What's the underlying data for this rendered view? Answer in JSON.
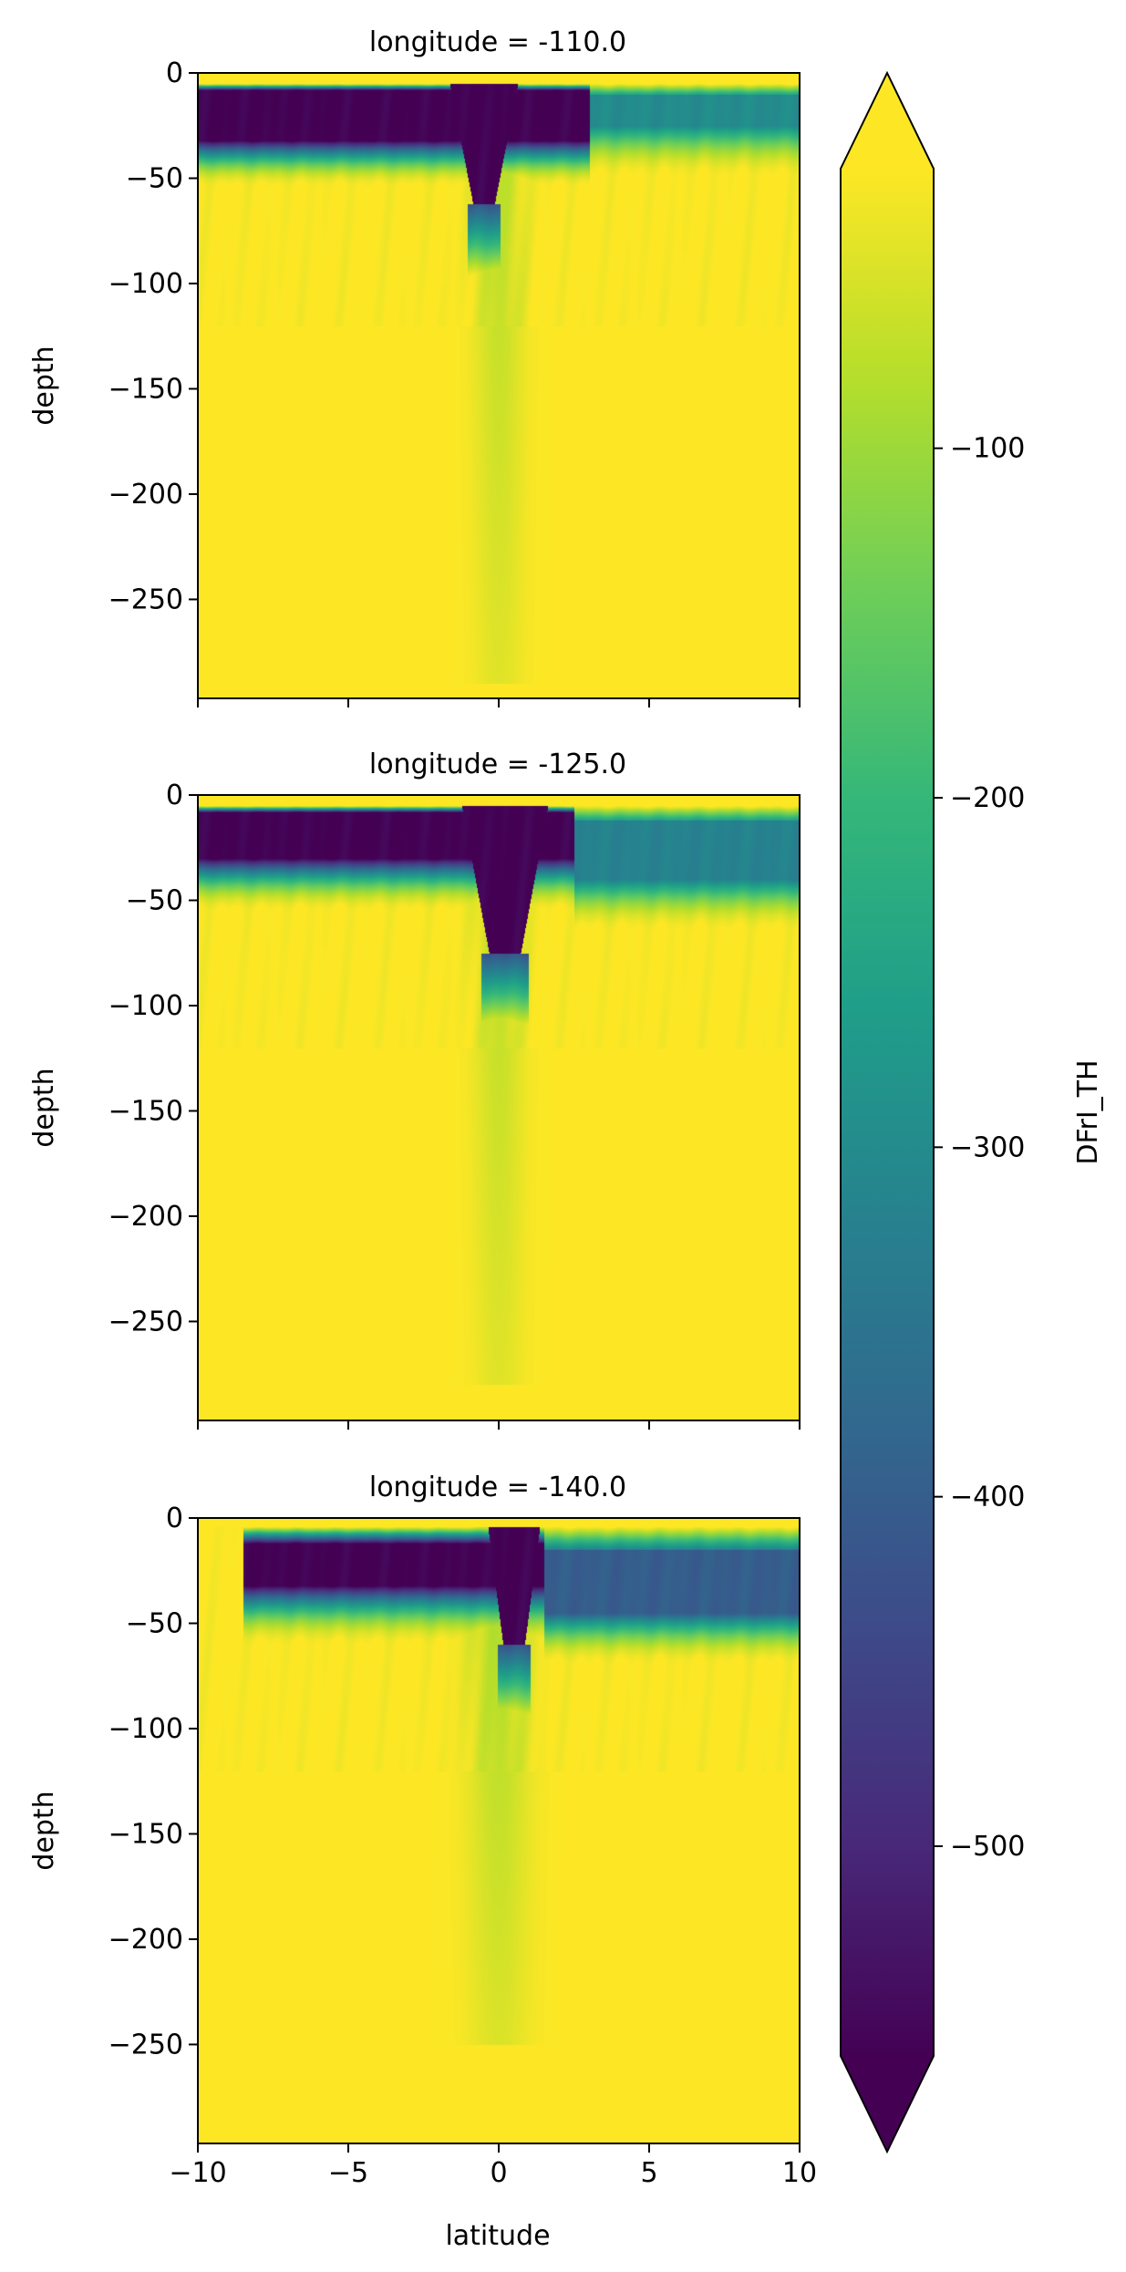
{
  "colors": {
    "viridis": [
      "#440154",
      "#482878",
      "#3e4989",
      "#31688e",
      "#26828e",
      "#1f9e89",
      "#35b779",
      "#6ece58",
      "#b5de2b",
      "#fde725"
    ]
  },
  "chart_data": {
    "type": "heatmap",
    "colorbar": {
      "label": "DFrI_TH",
      "ticks": [
        -100,
        -200,
        -300,
        -400,
        -500
      ],
      "tick_labels": [
        "−100",
        "−200",
        "−300",
        "−400",
        "−500"
      ],
      "range": [
        -560,
        -20
      ],
      "extend": "both",
      "colormap": "viridis"
    },
    "xlabel": "latitude",
    "ylabel": "depth",
    "xlim": [
      -10,
      10
    ],
    "ylim": [
      -297,
      0
    ],
    "xticks": [
      -10,
      -5,
      0,
      5,
      10
    ],
    "xtick_labels": [
      "−10",
      "−5",
      "0",
      "5",
      "10"
    ],
    "yticks": [
      0,
      -50,
      -100,
      -150,
      -200,
      -250
    ],
    "ytick_labels": [
      "0",
      "−50",
      "−100",
      "−150",
      "−200",
      "−250"
    ],
    "panels": [
      {
        "title": "longitude = -110.0",
        "surface_depth": 5,
        "dark_band": {
          "lat_range": [
            -10,
            3
          ],
          "depth_top": 8,
          "depth_bottom": 32,
          "falloff": 14
        },
        "plume": {
          "center": -0.5,
          "half_width": 1.2,
          "depth_max": 62,
          "taper_to": 0.3
        },
        "east_layer": {
          "lat_start": 3,
          "depth_top": 10,
          "depth_bottom": 25,
          "value": -300
        },
        "tongue": {
          "center": 0,
          "width": 0.8,
          "depth_bottom": 290,
          "value": -80
        }
      },
      {
        "title": "longitude = -125.0",
        "surface_depth": 5,
        "dark_band": {
          "lat_range": [
            -10,
            2.5
          ],
          "depth_top": 8,
          "depth_bottom": 30,
          "falloff": 16
        },
        "plume": {
          "center": 0.2,
          "half_width": 1.5,
          "depth_max": 75,
          "taper_to": 0.35
        },
        "east_layer": {
          "lat_start": 2.5,
          "depth_top": 12,
          "depth_bottom": 40,
          "value": -320
        },
        "tongue": {
          "center": 0,
          "width": 0.8,
          "depth_bottom": 280,
          "value": -80
        }
      },
      {
        "title": "longitude = -140.0",
        "surface_depth": 4,
        "dark_band": {
          "lat_range": [
            -8.5,
            1.5
          ],
          "depth_top": 12,
          "depth_bottom": 32,
          "falloff": 18
        },
        "plume": {
          "center": 0.5,
          "half_width": 0.9,
          "depth_max": 60,
          "taper_to": 0.4
        },
        "east_layer": {
          "lat_start": 1.5,
          "depth_top": 15,
          "depth_bottom": 45,
          "value": -400
        },
        "tongue": {
          "center": 0,
          "width": 1.0,
          "depth_bottom": 250,
          "value": -90
        }
      }
    ]
  }
}
